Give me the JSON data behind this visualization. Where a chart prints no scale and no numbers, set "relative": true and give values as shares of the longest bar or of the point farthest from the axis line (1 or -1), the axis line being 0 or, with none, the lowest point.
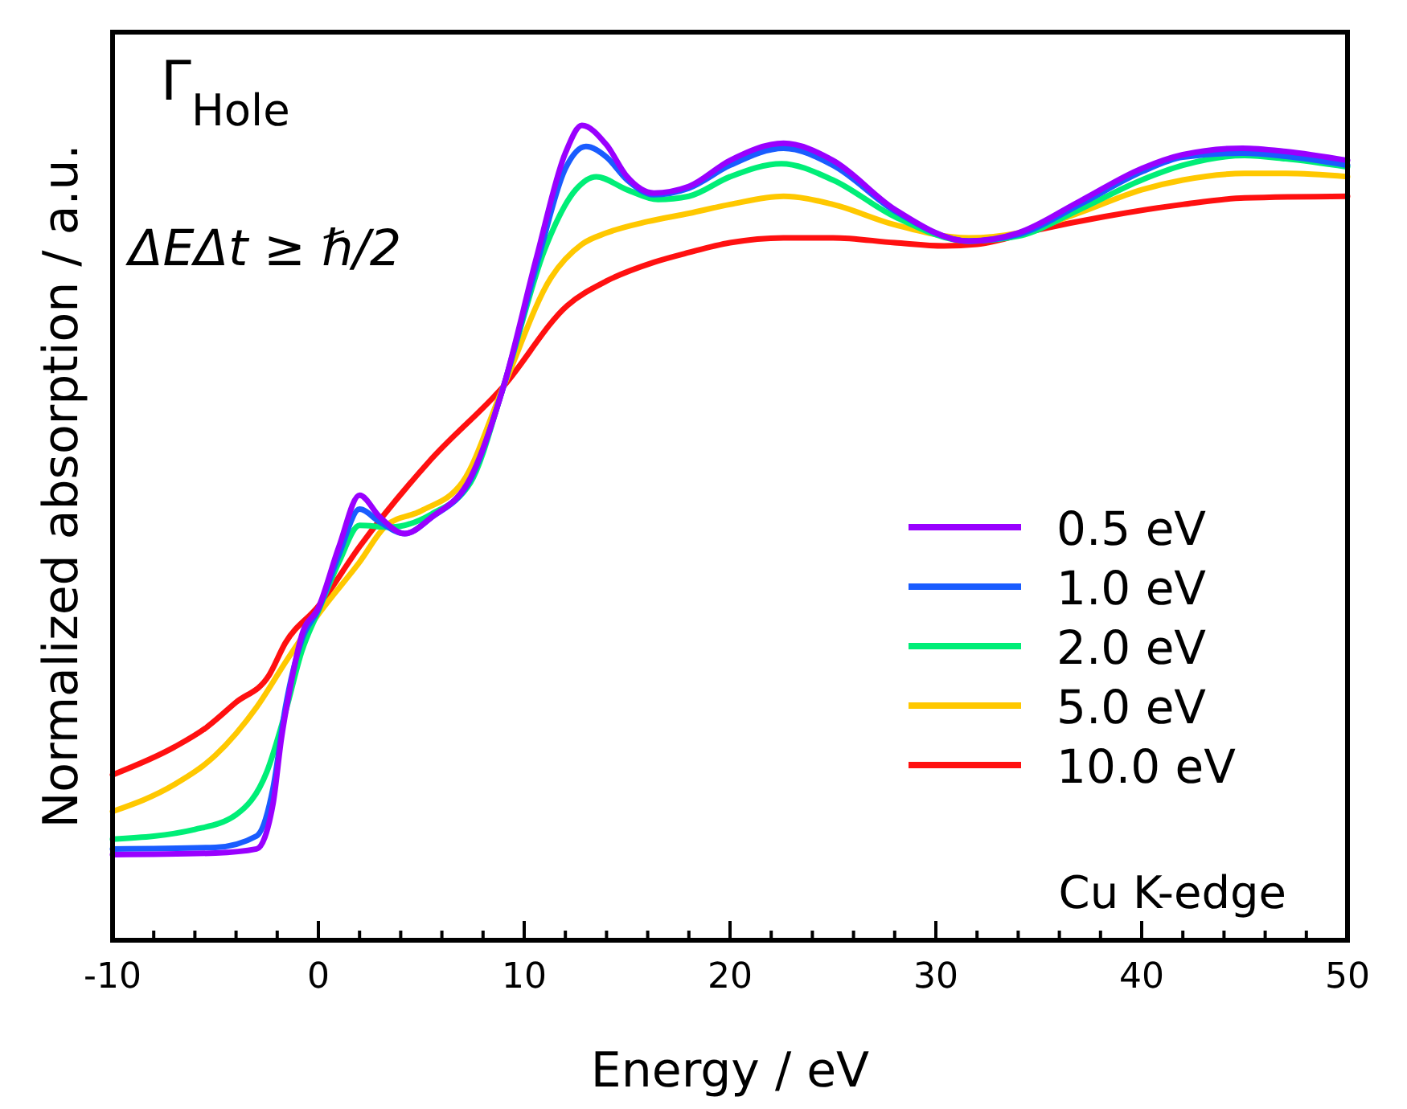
{
  "chart_data": {
    "type": "line",
    "relative": true,
    "xlabel": "Energy / eV",
    "ylabel": "Normalized absorption / a.u.",
    "xlim": [
      -10,
      50
    ],
    "xticks": [
      -10,
      {
        "value": -8,
        "label": null
      },
      {
        "value": -6,
        "label": null
      },
      {
        "value": -4,
        "label": null
      },
      {
        "value": -2,
        "label": null
      },
      0,
      {
        "value": 2,
        "label": null
      },
      {
        "value": 4,
        "label": null
      },
      {
        "value": 6,
        "label": null
      },
      {
        "value": 8,
        "label": null
      },
      10,
      {
        "value": 12,
        "label": null
      },
      {
        "value": 14,
        "label": null
      },
      {
        "value": 16,
        "label": null
      },
      {
        "value": 18,
        "label": null
      },
      20,
      {
        "value": 22,
        "label": null
      },
      {
        "value": 24,
        "label": null
      },
      {
        "value": 26,
        "label": null
      },
      {
        "value": 28,
        "label": null
      },
      30,
      {
        "value": 32,
        "label": null
      },
      {
        "value": 34,
        "label": null
      },
      {
        "value": 36,
        "label": null
      },
      {
        "value": 38,
        "label": null
      },
      40,
      {
        "value": 42,
        "label": null
      },
      {
        "value": 44,
        "label": null
      },
      {
        "value": 46,
        "label": null
      },
      {
        "value": 48,
        "label": null
      },
      50
    ],
    "tick_labels": "x",
    "legend": "bottom right",
    "grid": false,
    "annotations": [
      "Γ$_{Hole}$",
      "ΔEΔt ≥ ℏ/2",
      "Cu K-edge"
    ],
    "series": [
      {
        "name": "0.5 eV",
        "color": "#9900ff",
        "x": [
          -10,
          -5,
          -3,
          -2.2,
          -1.8,
          -1.4,
          -0.8,
          0,
          1,
          2,
          3,
          4.2,
          5.5,
          7.4,
          9,
          10.6,
          12,
          12.8,
          14,
          15,
          16.3,
          18,
          20,
          22.6,
          25,
          28,
          31.6,
          34,
          37,
          40,
          42,
          44.9,
          47,
          50
        ],
        "values": [
          0.105,
          0.107,
          0.112,
          0.168,
          0.247,
          0.306,
          0.375,
          0.408,
          0.483,
          0.546,
          0.519,
          0.499,
          0.519,
          0.568,
          0.68,
          0.838,
          0.966,
          1.0,
          0.976,
          0.937,
          0.917,
          0.925,
          0.957,
          0.978,
          0.957,
          0.897,
          0.858,
          0.868,
          0.907,
          0.947,
          0.964,
          0.972,
          0.968,
          0.957
        ]
      },
      {
        "name": "1.0 eV",
        "color": "#1a5cff",
        "x": [
          -10,
          -5,
          -3,
          -2.2,
          -1.6,
          -0.8,
          0,
          1,
          2,
          3,
          4.2,
          5.5,
          7.4,
          9,
          10.6,
          12,
          13,
          14,
          15,
          16.3,
          18,
          20,
          22.6,
          25,
          28,
          31.6,
          34,
          37,
          40,
          42,
          44.9,
          47,
          50
        ],
        "values": [
          0.112,
          0.114,
          0.128,
          0.187,
          0.286,
          0.369,
          0.406,
          0.473,
          0.529,
          0.513,
          0.499,
          0.519,
          0.566,
          0.68,
          0.828,
          0.947,
          0.974,
          0.961,
          0.933,
          0.915,
          0.923,
          0.951,
          0.972,
          0.951,
          0.895,
          0.858,
          0.866,
          0.903,
          0.943,
          0.961,
          0.966,
          0.962,
          0.951
        ]
      },
      {
        "name": "2.0 eV",
        "color": "#00ee77",
        "x": [
          -10,
          -6,
          -4,
          -2.5,
          -1.6,
          -0.8,
          0,
          1,
          2,
          3.5,
          5.5,
          7.4,
          9,
          11,
          12.5,
          13.5,
          15,
          16.5,
          18,
          20,
          22.5,
          25,
          28,
          31.6,
          34,
          37,
          40,
          42,
          45,
          47,
          50
        ],
        "values": [
          0.124,
          0.136,
          0.154,
          0.207,
          0.28,
          0.355,
          0.404,
          0.464,
          0.509,
          0.507,
          0.523,
          0.562,
          0.68,
          0.848,
          0.921,
          0.937,
          0.921,
          0.909,
          0.913,
          0.937,
          0.953,
          0.933,
          0.888,
          0.858,
          0.864,
          0.897,
          0.933,
          0.951,
          0.963,
          0.959,
          0.949
        ]
      },
      {
        "name": "5.0 eV",
        "color": "#ffc800",
        "x": [
          -10,
          -7,
          -5,
          -3,
          -1.5,
          0,
          2,
          3.3,
          5,
          7,
          9,
          11.3,
          12.8,
          14,
          16,
          18,
          20,
          22.6,
          25,
          28,
          31.6,
          34,
          37,
          40,
          42,
          45,
          47,
          50
        ],
        "values": [
          0.158,
          0.191,
          0.227,
          0.286,
          0.345,
          0.4,
          0.464,
          0.509,
          0.527,
          0.562,
          0.68,
          0.813,
          0.854,
          0.868,
          0.882,
          0.892,
          0.903,
          0.913,
          0.903,
          0.878,
          0.862,
          0.868,
          0.893,
          0.921,
          0.933,
          0.941,
          0.941,
          0.937
        ]
      },
      {
        "name": "10.0 eV",
        "color": "#ff1010",
        "x": [
          -10,
          -7,
          -5.5,
          -4,
          -2.4,
          -1.6,
          0,
          2,
          5.4,
          9,
          12.1,
          14,
          16.3,
          18,
          20,
          22.6,
          25,
          28,
          30.4,
          32,
          35,
          38.2,
          42,
          45,
          50
        ],
        "values": [
          0.203,
          0.237,
          0.26,
          0.292,
          0.325,
          0.365,
          0.41,
          0.483,
          0.588,
          0.68,
          0.779,
          0.809,
          0.832,
          0.844,
          0.856,
          0.862,
          0.862,
          0.856,
          0.852,
          0.854,
          0.872,
          0.888,
          0.903,
          0.911,
          0.913
        ]
      }
    ]
  }
}
